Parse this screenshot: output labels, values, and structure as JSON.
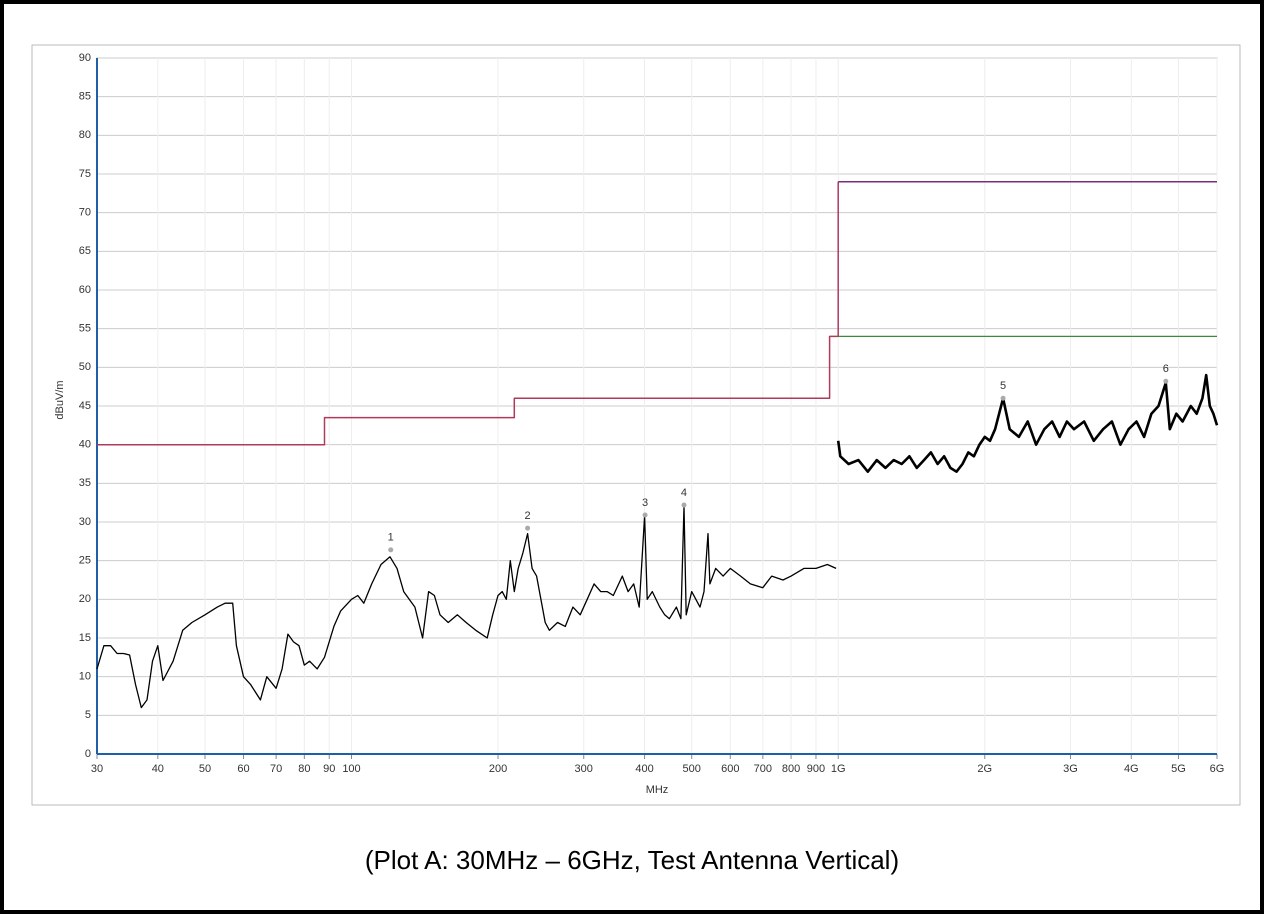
{
  "chart_data": {
    "type": "line",
    "x_scale": "log",
    "grid": true,
    "caption": "(Plot A: 30MHz – 6GHz, Test Antenna Vertical)",
    "x_label": "MHz",
    "y_label": "dBuV/m",
    "xlim": [
      30,
      6000
    ],
    "ylim": [
      0,
      90
    ],
    "xticks": [
      30,
      40,
      50,
      60,
      70,
      80,
      90,
      100,
      200,
      300,
      400,
      500,
      600,
      700,
      800,
      900,
      {
        "value": 1000,
        "label": "1G"
      },
      {
        "value": 2000,
        "label": "2G"
      },
      {
        "value": 3000,
        "label": "3G"
      },
      {
        "value": 4000,
        "label": "4G"
      },
      {
        "value": 5000,
        "label": "5G"
      },
      {
        "value": 6000,
        "label": "6G"
      }
    ],
    "yticks": [
      0,
      5,
      10,
      15,
      20,
      25,
      30,
      35,
      40,
      45,
      50,
      55,
      60,
      65,
      70,
      75,
      80,
      85,
      90
    ],
    "series": [
      {
        "color": "#b03a5b",
        "width": 1.5,
        "x": [
          30,
          88,
          88,
          216,
          216,
          960,
          960,
          1000,
          1000
        ],
        "values": [
          40,
          40,
          43.5,
          43.5,
          46,
          46,
          54,
          54,
          74
        ]
      },
      {
        "color": "#7a2d7e",
        "width": 1.5,
        "x": [
          1000,
          6000
        ],
        "values": [
          74,
          74
        ]
      },
      {
        "color": "#3a8a3a",
        "width": 1.2,
        "x": [
          1000,
          6000
        ],
        "values": [
          54,
          54
        ]
      },
      {
        "color": "#000000",
        "width": 1.3,
        "x": [
          30,
          31,
          32,
          33,
          34,
          35,
          36,
          37,
          38,
          39,
          40,
          41,
          43,
          45,
          47,
          50,
          53,
          55,
          57,
          58,
          60,
          62,
          65,
          67,
          70,
          72,
          74,
          76,
          78,
          80,
          82,
          85,
          88,
          92,
          95,
          100,
          103,
          106,
          110,
          115,
          120,
          124,
          128,
          135,
          140,
          144,
          148,
          152,
          158,
          165,
          172,
          180,
          190,
          195,
          200,
          204,
          208,
          212,
          216,
          220,
          225,
          230,
          235,
          240,
          245,
          250,
          255,
          265,
          275,
          285,
          295,
          305,
          315,
          325,
          335,
          345,
          360,
          370,
          380,
          390,
          400,
          405,
          415,
          430,
          440,
          450,
          465,
          475,
          482,
          487,
          500,
          520,
          530,
          540,
          545,
          560,
          580,
          600,
          630,
          660,
          700,
          730,
          770,
          800,
          850,
          900,
          950,
          990
        ],
        "values": [
          11,
          14,
          14,
          13,
          13,
          12.8,
          9,
          6,
          7,
          12,
          14,
          9.5,
          12,
          16,
          17,
          18,
          19,
          19.5,
          19.5,
          14,
          10,
          9,
          7,
          10,
          8.5,
          11,
          15.5,
          14.5,
          14,
          11.5,
          12,
          11,
          12.5,
          16.5,
          18.5,
          20,
          20.5,
          19.5,
          22,
          24.5,
          25.5,
          24,
          21,
          19,
          15,
          21,
          20.5,
          18,
          17,
          18,
          17,
          16,
          15,
          18,
          20.5,
          21,
          20,
          25,
          21,
          24,
          26,
          28.5,
          24,
          23,
          20,
          17,
          16,
          17,
          16.5,
          19,
          18,
          20,
          22,
          21,
          21,
          20.5,
          23,
          21,
          22,
          19,
          30.8,
          20,
          21,
          19,
          18,
          17.5,
          19,
          17.5,
          32,
          18,
          21,
          19,
          21,
          28.5,
          22,
          24,
          23,
          24,
          23,
          22,
          21.5,
          23,
          22.5,
          23,
          24,
          24,
          24.5,
          24
        ]
      },
      {
        "color": "#000000",
        "width": 2.6,
        "x": [
          1000,
          1010,
          1050,
          1100,
          1150,
          1200,
          1250,
          1300,
          1350,
          1400,
          1450,
          1500,
          1550,
          1600,
          1650,
          1700,
          1750,
          1800,
          1850,
          1900,
          1950,
          2000,
          2050,
          2100,
          2181,
          2250,
          2350,
          2450,
          2550,
          2650,
          2750,
          2850,
          2950,
          3050,
          3200,
          3350,
          3500,
          3650,
          3800,
          3950,
          4100,
          4250,
          4400,
          4550,
          4710,
          4800,
          4950,
          5100,
          5300,
          5450,
          5600,
          5700,
          5800,
          5900,
          6000
        ],
        "values": [
          40.5,
          38.5,
          37.5,
          38,
          36.5,
          38,
          37,
          38,
          37.5,
          38.5,
          37,
          38,
          39,
          37.5,
          38.5,
          37,
          36.5,
          37.5,
          39,
          38.5,
          40,
          41,
          40.5,
          42,
          46,
          42,
          41,
          43,
          40,
          42,
          43,
          41,
          43,
          42,
          43,
          40.5,
          42,
          43,
          40,
          42,
          43,
          41,
          44,
          45,
          48,
          42,
          44,
          43,
          45,
          44,
          46,
          49,
          45,
          44,
          42.5
        ]
      }
    ],
    "markers": [
      {
        "label": "1",
        "x": 120.4,
        "y": 26.4
      },
      {
        "label": "2",
        "x": 230,
        "y": 29.2
      },
      {
        "label": "3",
        "x": 401,
        "y": 30.9
      },
      {
        "label": "4",
        "x": 482,
        "y": 32.2
      },
      {
        "label": "5",
        "x": 2181,
        "y": 46
      },
      {
        "label": "6",
        "x": 4710,
        "y": 48.2
      }
    ]
  }
}
